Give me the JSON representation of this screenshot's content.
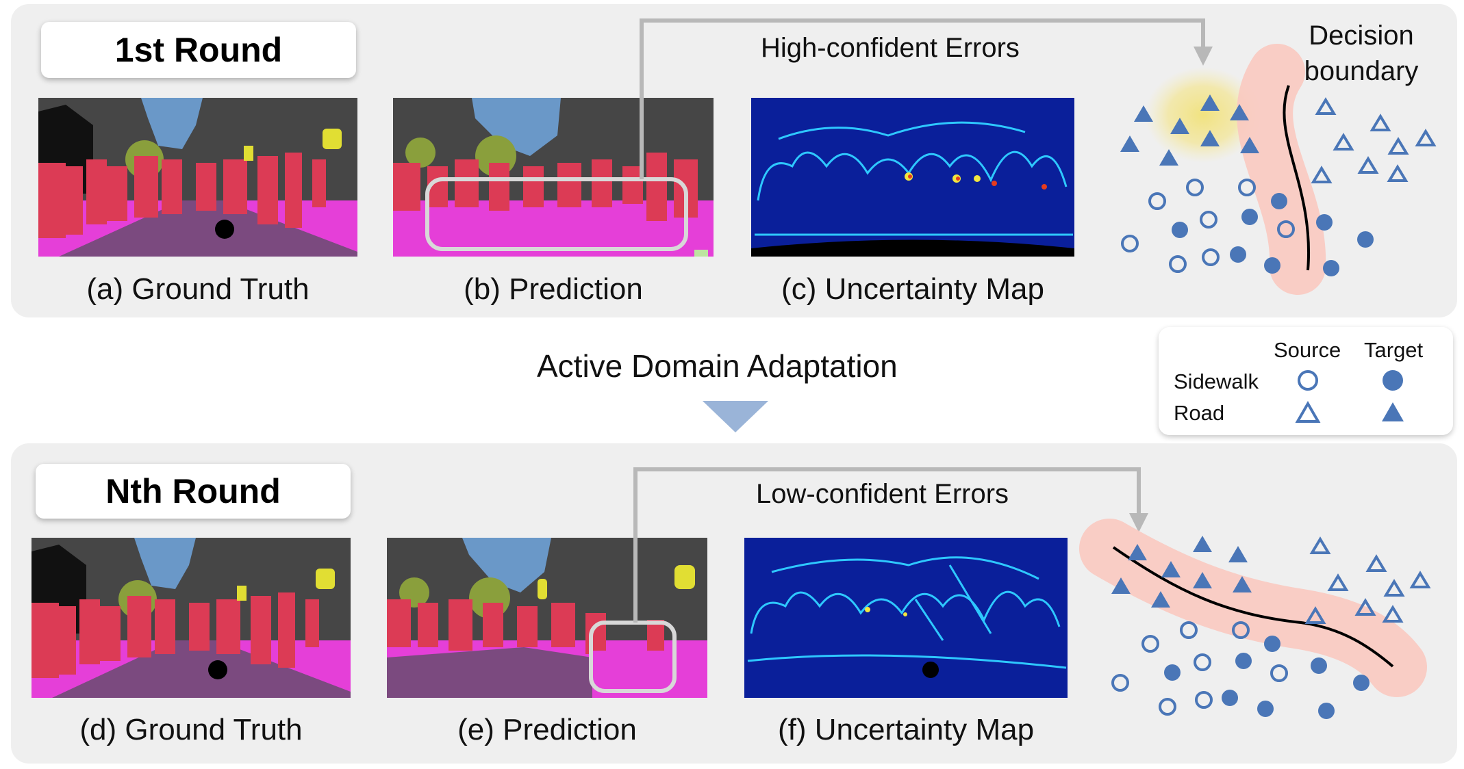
{
  "top_round": {
    "title": "1st Round",
    "captions": [
      "(a) Ground Truth",
      "(b) Prediction",
      "(c) Uncertainty Map"
    ],
    "error_label": "High-confident Errors",
    "decision_boundary_label": "Decision boundary"
  },
  "transition": {
    "title": "Active Domain Adaptation"
  },
  "bottom_round": {
    "title": "Nth Round",
    "captions": [
      "(d) Ground Truth",
      "(e) Prediction",
      "(f) Uncertainty Map"
    ],
    "error_label": "Low-confident Errors"
  },
  "legend": {
    "columns": [
      "Source",
      "Target"
    ],
    "rows": [
      "Sidewalk",
      "Road"
    ]
  },
  "colors": {
    "panel_bg": "#efefef",
    "marker_blue": "#4a76b7",
    "boundary_band": "#f9c9c0",
    "highlight_yellow": "#f1e27a",
    "arrow_gray": "#b8b8b8",
    "down_arrow": "#9ab4d8",
    "person_red": "#dc3b55",
    "road_purple": "#7b4a7f",
    "sidewalk_magenta": "#e53fd8",
    "sky_blue": "#6a98c8",
    "vegetation_green": "#8a9f3c",
    "building_gray": "#464646",
    "sign_yellow": "#e1de33"
  }
}
